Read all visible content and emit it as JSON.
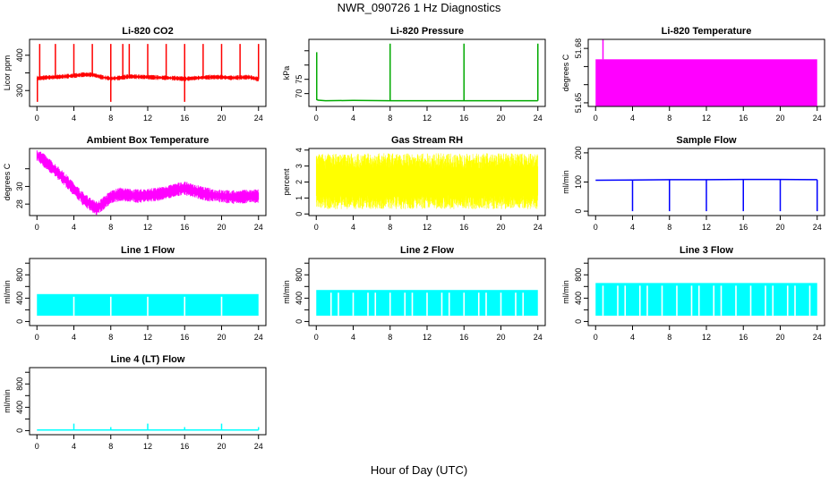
{
  "figure": {
    "title": "NWR_090726  1 Hz Diagnostics",
    "xlabel": "Hour of Day (UTC)"
  },
  "chart_data": [
    {
      "type": "line",
      "title": "Li-820 CO2",
      "ylabel": "Licor ppm",
      "color": "#ff0000",
      "xlim": [
        -0.8,
        24.8
      ],
      "ylim": [
        255,
        445
      ],
      "yticks": [
        300,
        350,
        400
      ],
      "ytick_labels": [
        "300",
        "",
        "400"
      ],
      "xticks": [
        0,
        4,
        8,
        12,
        16,
        20,
        24
      ],
      "series": [
        {
          "x": [
            0,
            0.3,
            1,
            2,
            3,
            4,
            5,
            6,
            7,
            8,
            9,
            10,
            11,
            12,
            13,
            14,
            15,
            16,
            17,
            18,
            19,
            20,
            21,
            22,
            23,
            24
          ],
          "values": [
            335,
            335,
            337,
            338,
            340,
            342,
            345,
            345,
            338,
            334,
            336,
            340,
            339,
            338,
            337,
            336,
            335,
            333,
            335,
            337,
            338,
            338,
            336,
            337,
            338,
            332
          ]
        }
      ],
      "spikes": [
        {
          "x": [
            0.3,
            2.0,
            4.0,
            6.0,
            8.0,
            9.3,
            10.0,
            12.0,
            14.0,
            16.0,
            18.0,
            20.0,
            22.0,
            24.0
          ],
          "value": 432
        }
      ],
      "dips": [
        {
          "x": [
            0.05,
            8.0,
            16.0
          ],
          "value": 268
        }
      ],
      "range_fill": {
        "low": [
          325,
          355
        ]
      }
    },
    {
      "type": "line",
      "title": "Li-820 Pressure",
      "ylabel": "kPa",
      "color": "#00aa00",
      "xlim": [
        -0.8,
        24.8
      ],
      "ylim": [
        65.5,
        89
      ],
      "yticks": [
        70,
        75,
        80,
        85
      ],
      "ytick_labels": [
        "70",
        "75",
        "",
        ""
      ],
      "xticks": [
        0,
        4,
        8,
        12,
        16,
        20,
        24
      ],
      "series": [
        {
          "x": [
            0,
            0.2,
            1,
            4,
            8,
            12,
            16,
            20,
            24
          ],
          "values": [
            68,
            67.7,
            67.5,
            67.6,
            67.5,
            67.5,
            67.5,
            67.5,
            67.5
          ]
        }
      ],
      "spikes": [
        {
          "x": [
            0.05
          ],
          "value": 84.5
        },
        {
          "x": [
            8.0,
            16.0,
            24.0
          ],
          "value": 87.5
        }
      ]
    },
    {
      "type": "area",
      "title": "Li-820 Temperature",
      "ylabel": "degrees C",
      "color": "#ff00ff",
      "xlim": [
        -0.8,
        24.8
      ],
      "ylim": [
        51.648,
        51.685
      ],
      "yticks": [
        51.65,
        51.66,
        51.67,
        51.68
      ],
      "ytick_labels": [
        "51.65",
        "",
        "",
        "51.68"
      ],
      "xticks": [
        0,
        4,
        8,
        12,
        16,
        20,
        24
      ],
      "band": {
        "x0": 0,
        "x1": 24,
        "y0": 51.648,
        "y1": 51.674
      },
      "spikes": [
        {
          "x": [
            0.8
          ],
          "value": 51.685
        }
      ]
    },
    {
      "type": "line",
      "title": "Ambient Box Temperature",
      "ylabel": "degrees C",
      "color": "#ff00ff",
      "xlim": [
        -0.8,
        24.8
      ],
      "ylim": [
        26.7,
        34.3
      ],
      "yticks": [
        28,
        30,
        32
      ],
      "ytick_labels": [
        "28",
        "30",
        ""
      ],
      "xticks": [
        0,
        4,
        8,
        12,
        16,
        20,
        24
      ],
      "series": [
        {
          "x": [
            0,
            0.5,
            1,
            2,
            3,
            4,
            5,
            6,
            6.5,
            7,
            8,
            9,
            10,
            11,
            12,
            13,
            14,
            15,
            16,
            17,
            18,
            19,
            20,
            21,
            22,
            23,
            24
          ],
          "values": [
            33.5,
            33.2,
            32.7,
            31.8,
            30.8,
            29.7,
            28.6,
            27.8,
            27.5,
            27.9,
            28.8,
            29.1,
            29.0,
            28.9,
            29.0,
            29.1,
            29.3,
            29.6,
            29.8,
            29.5,
            29.2,
            29.0,
            28.9,
            28.8,
            28.8,
            28.9,
            28.9
          ]
        }
      ],
      "noise": 0.55
    },
    {
      "type": "area",
      "title": "Gas Stream RH",
      "ylabel": "percent",
      "color": "#ffff00",
      "xlim": [
        -0.8,
        24.8
      ],
      "ylim": [
        -0.1,
        4.1
      ],
      "yticks": [
        0,
        1,
        2,
        3,
        4
      ],
      "ytick_labels": [
        "0",
        "1",
        "2",
        "3",
        "4"
      ],
      "xticks": [
        0,
        4,
        8,
        12,
        16,
        20,
        24
      ],
      "envelope": {
        "low": [
          0.3,
          1.2
        ],
        "high": [
          2.8,
          3.8
        ]
      }
    },
    {
      "type": "line",
      "title": "Sample Flow",
      "ylabel": "ml/min",
      "color": "#0000ff",
      "xlim": [
        -0.8,
        24.8
      ],
      "ylim": [
        -15,
        215
      ],
      "yticks": [
        0,
        100,
        200
      ],
      "ytick_labels": [
        "0",
        "100",
        "200"
      ],
      "xticks": [
        0,
        4,
        8,
        12,
        16,
        20,
        24
      ],
      "series": [
        {
          "x": [
            0,
            4,
            8,
            12,
            16,
            20,
            24
          ],
          "values": [
            106,
            107,
            108,
            108,
            109,
            109,
            108
          ]
        }
      ],
      "dips": [
        {
          "x": [
            4.0,
            8.0,
            12.0,
            16.0,
            20.0,
            24.0
          ],
          "value": 0
        }
      ]
    },
    {
      "type": "area",
      "title": "Line 1 Flow",
      "ylabel": "ml/min",
      "color": "#00ffff",
      "xlim": [
        -0.8,
        24.8
      ],
      "ylim": [
        -70,
        1080
      ],
      "yticks": [
        0,
        200,
        400,
        600,
        800,
        1000
      ],
      "ytick_labels": [
        "0",
        "",
        "400",
        "",
        "800",
        ""
      ],
      "xticks": [
        0,
        4,
        8,
        12,
        16,
        20,
        24
      ],
      "band": {
        "x0": 0,
        "x1": 24,
        "y0": 100,
        "y1": 470
      },
      "gaps": [
        4.0,
        8.0,
        12.0,
        16.0,
        20.0
      ]
    },
    {
      "type": "area",
      "title": "Line 2 Flow",
      "ylabel": "ml/min",
      "color": "#00ffff",
      "xlim": [
        -0.8,
        24.8
      ],
      "ylim": [
        -70,
        1080
      ],
      "yticks": [
        0,
        200,
        400,
        600,
        800,
        1000
      ],
      "ytick_labels": [
        "0",
        "",
        "400",
        "",
        "800",
        ""
      ],
      "xticks": [
        0,
        4,
        8,
        12,
        16,
        20,
        24
      ],
      "band": {
        "x0": 0,
        "x1": 24,
        "y0": 100,
        "y1": 540
      },
      "gaps": [
        1.6,
        2.4,
        4.0,
        5.6,
        6.4,
        8.0,
        9.6,
        10.4,
        12.0,
        13.6,
        14.4,
        16.0,
        17.6,
        18.4,
        20.0,
        21.6,
        22.4
      ]
    },
    {
      "type": "area",
      "title": "Line 3 Flow",
      "ylabel": "ml/min",
      "color": "#00ffff",
      "xlim": [
        -0.8,
        24.8
      ],
      "ylim": [
        -70,
        1080
      ],
      "yticks": [
        0,
        200,
        400,
        600,
        800,
        1000
      ],
      "ytick_labels": [
        "0",
        "",
        "400",
        "",
        "800",
        ""
      ],
      "xticks": [
        0,
        4,
        8,
        12,
        16,
        20,
        24
      ],
      "band": {
        "x0": 0,
        "x1": 24,
        "y0": 100,
        "y1": 660
      },
      "gaps": [
        0.8,
        2.4,
        3.2,
        4.8,
        5.6,
        7.2,
        8.8,
        10.4,
        11.2,
        12.8,
        13.6,
        15.2,
        16.8,
        18.4,
        19.2,
        20.8,
        21.6,
        23.2
      ]
    },
    {
      "type": "line",
      "title": "Line 4 (LT) Flow",
      "ylabel": "ml/min",
      "color": "#00ffff",
      "xlim": [
        -0.8,
        24.8
      ],
      "ylim": [
        -70,
        1080
      ],
      "yticks": [
        0,
        200,
        400,
        600,
        800,
        1000
      ],
      "ytick_labels": [
        "0",
        "",
        "400",
        "",
        "800",
        ""
      ],
      "xticks": [
        0,
        4,
        8,
        12,
        16,
        20,
        24
      ],
      "series": [
        {
          "x": [
            0,
            24
          ],
          "values": [
            10,
            10
          ]
        }
      ],
      "spikes": [
        {
          "x": [
            4.0,
            12.0,
            20.0
          ],
          "value": 120
        },
        {
          "x": [
            8.0,
            16.0,
            24.0
          ],
          "value": 60
        }
      ]
    }
  ]
}
